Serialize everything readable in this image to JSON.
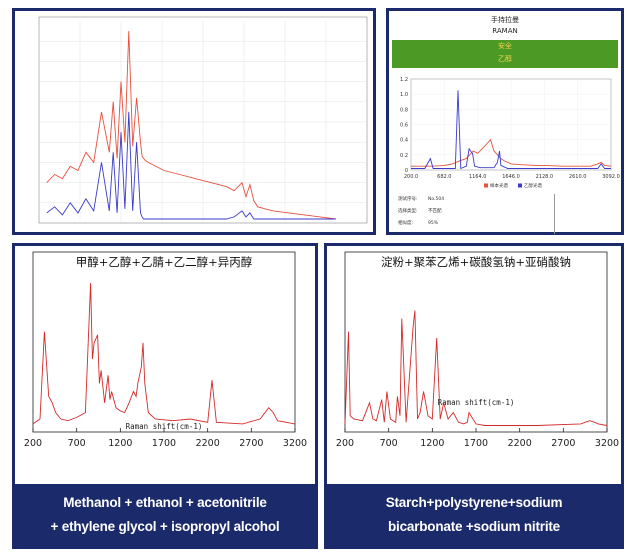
{
  "panels": {
    "top_right": {
      "header_line1": "手持拉曼",
      "header_line2": "RAMAN",
      "status_label": "安全",
      "substance_label": "乙醇",
      "info": [
        {
          "key": "测试序号:",
          "value": "No.504"
        },
        {
          "key": "选择类型:",
          "value": "不匹配"
        },
        {
          "key": "相似度:",
          "value": "95%"
        }
      ]
    },
    "bottom_left": {
      "caption_line1": "Methanol + ethanol + acetonitrile",
      "caption_line2": "+ ethylene glycol + isopropyl alcohol"
    },
    "bottom_right": {
      "caption_line1": "Starch+polystyrene+sodium",
      "caption_line2": "bicarbonate +sodium nitrite"
    }
  },
  "colors": {
    "frame": "#1b2a6b",
    "status_green": "#4c9a25",
    "status_text": "#f2d24a",
    "sample_red": "#e8503c",
    "reference_blue": "#3a3acc",
    "bottom_red": "#d42a2a"
  },
  "chart_data": [
    {
      "type": "line",
      "id": "top-left-spectrum",
      "grid": true,
      "series": [
        {
          "color": "#e8503c",
          "x": [
            300,
            400,
            500,
            600,
            700,
            800,
            900,
            1000,
            1100,
            1150,
            1200,
            1250,
            1300,
            1350,
            1400,
            1450,
            1500,
            1520,
            1540,
            1560,
            1600,
            1700,
            1800,
            2000,
            2200,
            2400,
            2600,
            2700,
            2800,
            2850,
            2900,
            2950,
            3000,
            3100,
            3200,
            3400,
            3600,
            3800,
            4000
          ],
          "y": [
            0.2,
            0.24,
            0.22,
            0.28,
            0.26,
            0.35,
            0.3,
            0.55,
            0.35,
            0.6,
            0.32,
            0.7,
            0.4,
            0.95,
            0.38,
            0.62,
            0.4,
            0.33,
            0.32,
            0.31,
            0.3,
            0.28,
            0.26,
            0.24,
            0.22,
            0.2,
            0.18,
            0.16,
            0.2,
            0.13,
            0.19,
            0.11,
            0.08,
            0.07,
            0.06,
            0.05,
            0.04,
            0.03,
            0.02
          ]
        },
        {
          "color": "#3a3acc",
          "x": [
            300,
            400,
            500,
            600,
            700,
            800,
            900,
            1000,
            1100,
            1150,
            1200,
            1250,
            1300,
            1350,
            1400,
            1450,
            1500,
            1520,
            1540,
            1560,
            1600,
            1700,
            1800,
            2000,
            2200,
            2400,
            2600,
            2700,
            2800,
            2850,
            2900,
            2950,
            3000,
            3100,
            3200,
            3400,
            3600,
            3800,
            4000
          ],
          "y": [
            0.05,
            0.08,
            0.04,
            0.1,
            0.05,
            0.12,
            0.06,
            0.3,
            0.06,
            0.35,
            0.05,
            0.45,
            0.07,
            0.55,
            0.06,
            0.4,
            0.05,
            0.03,
            0.02,
            0.02,
            0.02,
            0.02,
            0.02,
            0.02,
            0.02,
            0.02,
            0.02,
            0.03,
            0.06,
            0.03,
            0.05,
            0.02,
            0.02,
            0.02,
            0.02,
            0.02,
            0.02,
            0.02,
            0.02
          ]
        }
      ],
      "xlim": [
        200,
        4400
      ],
      "ylim": [
        0,
        1
      ]
    },
    {
      "type": "line",
      "id": "top-right-spectrum",
      "grid": true,
      "x_ticks": [
        "200.0",
        "682.0",
        "1164.0",
        "1646.0",
        "2128.0",
        "2610.0",
        "3092.0"
      ],
      "y_ticks": [
        "0",
        "0.2",
        "0.4",
        "0.6",
        "0.8",
        "1.0",
        "1.2"
      ],
      "legend": [
        "样本光谱",
        "乙醇光谱"
      ],
      "series": [
        {
          "color": "#e8503c",
          "x": [
            200,
            500,
            682,
            800,
            900,
            1000,
            1050,
            1100,
            1164,
            1250,
            1300,
            1350,
            1400,
            1450,
            1500,
            1550,
            1600,
            1646,
            1800,
            2000,
            2128,
            2400,
            2610,
            2800,
            2900,
            2950,
            3000,
            3092
          ],
          "y": [
            0.05,
            0.05,
            0.06,
            0.08,
            0.12,
            0.15,
            0.2,
            0.25,
            0.22,
            0.3,
            0.35,
            0.4,
            0.25,
            0.2,
            0.15,
            0.12,
            0.1,
            0.08,
            0.07,
            0.06,
            0.06,
            0.05,
            0.05,
            0.05,
            0.08,
            0.1,
            0.06,
            0.05
          ]
        },
        {
          "color": "#3a3acc",
          "x": [
            200,
            400,
            480,
            520,
            700,
            840,
            880,
            920,
            1000,
            1040,
            1060,
            1090,
            1120,
            1200,
            1300,
            1400,
            1450,
            1480,
            1500,
            1600,
            2000,
            2600,
            2900,
            2950,
            3000,
            3092
          ],
          "y": [
            0.02,
            0.02,
            0.15,
            0.02,
            0.02,
            0.02,
            1.05,
            0.02,
            0.05,
            0.28,
            0.25,
            0.22,
            0.05,
            0.03,
            0.03,
            0.03,
            0.1,
            0.25,
            0.06,
            0.02,
            0.02,
            0.02,
            0.02,
            0.08,
            0.02,
            0.02
          ]
        }
      ],
      "xlim": [
        200,
        3092
      ],
      "ylim": [
        0,
        1.2
      ]
    },
    {
      "type": "line",
      "id": "bottom-left-spectrum",
      "title": "甲醇+乙醇+乙腈+乙二醇+异丙醇",
      "xlabel": "Raman shift(cm-1)",
      "x_ticks": [
        "200",
        "700",
        "1200",
        "1700",
        "2200",
        "2700",
        "3200"
      ],
      "series": [
        {
          "color": "#d42a2a",
          "x": [
            200,
            280,
            330,
            380,
            420,
            460,
            520,
            600,
            700,
            800,
            860,
            880,
            900,
            940,
            960,
            980,
            1000,
            1020,
            1060,
            1080,
            1100,
            1150,
            1200,
            1250,
            1300,
            1350,
            1380,
            1400,
            1440,
            1460,
            1480,
            1520,
            1600,
            1800,
            2000,
            2200,
            2250,
            2300,
            2600,
            2800,
            2900,
            2950,
            3000,
            3200
          ],
          "y": [
            0.05,
            0.08,
            0.62,
            0.22,
            0.18,
            0.12,
            0.08,
            0.07,
            0.09,
            0.12,
            0.92,
            0.45,
            0.55,
            0.6,
            0.3,
            0.38,
            0.28,
            0.18,
            0.35,
            0.2,
            0.25,
            0.15,
            0.13,
            0.12,
            0.18,
            0.25,
            0.22,
            0.3,
            0.4,
            0.55,
            0.3,
            0.12,
            0.08,
            0.07,
            0.08,
            0.06,
            0.32,
            0.06,
            0.05,
            0.08,
            0.15,
            0.12,
            0.07,
            0.05
          ]
        }
      ],
      "xlim": [
        200,
        3200
      ],
      "ylim": [
        0,
        1
      ]
    },
    {
      "type": "line",
      "id": "bottom-right-spectrum",
      "title": "淀粉+聚苯乙烯+碳酸氢钠+亚硝酸钠",
      "xlabel": "Raman shift(cm-1)",
      "x_ticks": [
        "200",
        "700",
        "1200",
        "1700",
        "2200",
        "2700",
        "3200"
      ],
      "series": [
        {
          "color": "#d42a2a",
          "x": [
            200,
            240,
            260,
            300,
            400,
            480,
            520,
            560,
            620,
            650,
            680,
            720,
            780,
            800,
            830,
            850,
            900,
            980,
            1000,
            1030,
            1060,
            1100,
            1150,
            1200,
            1250,
            1290,
            1330,
            1380,
            1440,
            1500,
            1560,
            1600,
            1620,
            1700,
            1800,
            2000,
            2400,
            2900,
            3000,
            3060,
            3100,
            3200
          ],
          "y": [
            0.05,
            0.62,
            0.1,
            0.08,
            0.07,
            0.18,
            0.08,
            0.07,
            0.2,
            0.06,
            0.25,
            0.08,
            0.06,
            0.22,
            0.1,
            0.7,
            0.06,
            0.65,
            0.75,
            0.08,
            0.12,
            0.25,
            0.1,
            0.08,
            0.58,
            0.08,
            0.18,
            0.08,
            0.12,
            0.06,
            0.05,
            0.06,
            0.12,
            0.05,
            0.04,
            0.04,
            0.04,
            0.05,
            0.07,
            0.06,
            0.05,
            0.04
          ]
        }
      ],
      "xlim": [
        200,
        3200
      ],
      "ylim": [
        0,
        1
      ]
    }
  ]
}
